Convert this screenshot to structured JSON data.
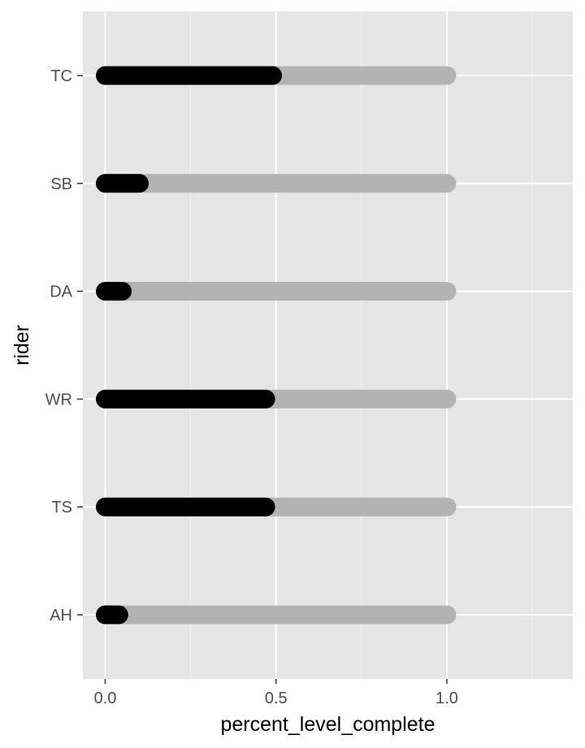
{
  "chart_data": {
    "type": "bar",
    "subtype": "lollipop-progress",
    "title": "",
    "xlabel": "percent_level_complete",
    "ylabel": "rider",
    "xlim": [
      -0.06,
      1.35
    ],
    "x_ticks": [
      0.0,
      0.5,
      1.0
    ],
    "x_tick_labels": [
      "0.0",
      "0.5",
      "1.0"
    ],
    "x_minor_ticks": [
      0.25,
      0.75,
      1.25
    ],
    "categories": [
      "TC",
      "SB",
      "DA",
      "WR",
      "TS",
      "AH"
    ],
    "series": [
      {
        "role": "background",
        "start": [
          0,
          0,
          0,
          0,
          0,
          0
        ],
        "values": [
          1.0,
          1.0,
          1.0,
          1.0,
          1.0,
          1.0
        ],
        "color": "#b3b3b3"
      },
      {
        "role": "progress",
        "start": [
          0,
          0,
          0,
          0,
          0,
          0
        ],
        "values": [
          0.49,
          0.1,
          0.05,
          0.47,
          0.47,
          0.04
        ],
        "color": "#000000"
      }
    ],
    "grid": true,
    "legend": "none",
    "panel_background": "#e5e5e5",
    "grid_color": "#ffffff"
  }
}
